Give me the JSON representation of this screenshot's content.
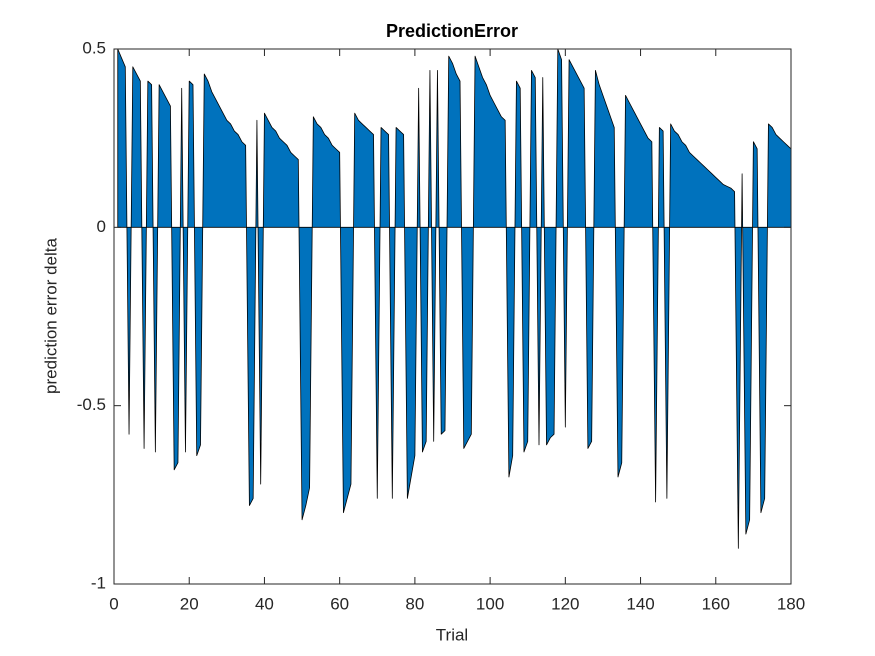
{
  "chart_data": {
    "type": "area",
    "title": "PredictionError",
    "xlabel": "Trial",
    "ylabel": "prediction error delta",
    "x": [
      1,
      2,
      3,
      4,
      5,
      6,
      7,
      8,
      9,
      10,
      11,
      12,
      13,
      14,
      15,
      16,
      17,
      18,
      19,
      20,
      21,
      22,
      23,
      24,
      25,
      26,
      27,
      28,
      29,
      30,
      31,
      32,
      33,
      34,
      35,
      36,
      37,
      38,
      39,
      40,
      41,
      42,
      43,
      44,
      45,
      46,
      47,
      48,
      49,
      50,
      51,
      52,
      53,
      54,
      55,
      56,
      57,
      58,
      59,
      60,
      61,
      62,
      63,
      64,
      65,
      66,
      67,
      68,
      69,
      70,
      71,
      72,
      73,
      74,
      75,
      76,
      77,
      78,
      79,
      80,
      81,
      82,
      83,
      84,
      85,
      86,
      87,
      88,
      89,
      90,
      91,
      92,
      93,
      94,
      95,
      96,
      97,
      98,
      99,
      100,
      101,
      102,
      103,
      104,
      105,
      106,
      107,
      108,
      109,
      110,
      111,
      112,
      113,
      114,
      115,
      116,
      117,
      118,
      119,
      120,
      121,
      122,
      123,
      124,
      125,
      126,
      127,
      128,
      129,
      130,
      131,
      132,
      133,
      134,
      135,
      136,
      137,
      138,
      139,
      140,
      141,
      142,
      143,
      144,
      145,
      146,
      147,
      148,
      149,
      150,
      151,
      152,
      153,
      154,
      155,
      156,
      157,
      158,
      159,
      160,
      161,
      162,
      163,
      164,
      165,
      166,
      167,
      168,
      169,
      170,
      171,
      172,
      173,
      174,
      175,
      176,
      177,
      178,
      179,
      180
    ],
    "values": [
      0.5,
      0.475,
      0.45,
      -0.58,
      0.45,
      0.43,
      0.41,
      -0.62,
      0.41,
      0.4,
      -0.63,
      0.4,
      0.38,
      0.36,
      0.34,
      -0.68,
      -0.66,
      0.39,
      -0.63,
      0.41,
      0.4,
      -0.64,
      -0.61,
      0.43,
      0.41,
      0.38,
      0.36,
      0.34,
      0.32,
      0.3,
      0.29,
      0.27,
      0.26,
      0.24,
      0.23,
      -0.78,
      -0.76,
      0.3,
      -0.72,
      0.32,
      0.3,
      0.28,
      0.27,
      0.25,
      0.24,
      0.23,
      0.21,
      0.2,
      0.19,
      -0.82,
      -0.78,
      -0.73,
      0.31,
      0.29,
      0.28,
      0.26,
      0.25,
      0.23,
      0.22,
      0.21,
      -0.8,
      -0.76,
      -0.72,
      0.32,
      0.3,
      0.29,
      0.28,
      0.27,
      0.26,
      -0.76,
      0.28,
      0.27,
      0.26,
      -0.76,
      0.28,
      0.27,
      0.26,
      -0.76,
      -0.7,
      -0.64,
      0.39,
      -0.63,
      -0.6,
      0.44,
      -0.6,
      0.44,
      -0.58,
      -0.57,
      0.48,
      0.46,
      0.43,
      0.41,
      -0.62,
      -0.6,
      -0.58,
      0.48,
      0.45,
      0.42,
      0.4,
      0.37,
      0.35,
      0.33,
      0.31,
      0.3,
      -0.7,
      -0.64,
      0.41,
      0.39,
      -0.63,
      -0.6,
      0.44,
      0.42,
      -0.61,
      0.42,
      -0.61,
      -0.59,
      -0.58,
      0.5,
      0.47,
      -0.56,
      0.47,
      0.45,
      0.43,
      0.41,
      0.39,
      -0.62,
      -0.6,
      0.44,
      0.4,
      0.37,
      0.34,
      0.31,
      0.28,
      -0.7,
      -0.66,
      0.37,
      0.35,
      0.33,
      0.31,
      0.29,
      0.27,
      0.25,
      0.24,
      -0.77,
      0.28,
      0.27,
      -0.76,
      0.29,
      0.27,
      0.26,
      0.24,
      0.23,
      0.21,
      0.2,
      0.19,
      0.18,
      0.17,
      0.16,
      0.15,
      0.14,
      0.13,
      0.12,
      0.115,
      0.11,
      0.1,
      -0.9,
      0.15,
      -0.86,
      -0.82,
      0.24,
      0.22,
      -0.8,
      -0.76,
      0.29,
      0.28,
      0.26,
      0.25,
      0.24,
      0.23,
      0.22
    ],
    "color": "#0072bd",
    "edge_color": "#000000",
    "xlim": [
      0,
      180
    ],
    "xticks": [
      0,
      20,
      40,
      60,
      80,
      100,
      120,
      140,
      160,
      180
    ],
    "ylim": [
      -1,
      0.5
    ],
    "yticks": [
      -1,
      -0.5,
      0,
      0.5
    ]
  }
}
